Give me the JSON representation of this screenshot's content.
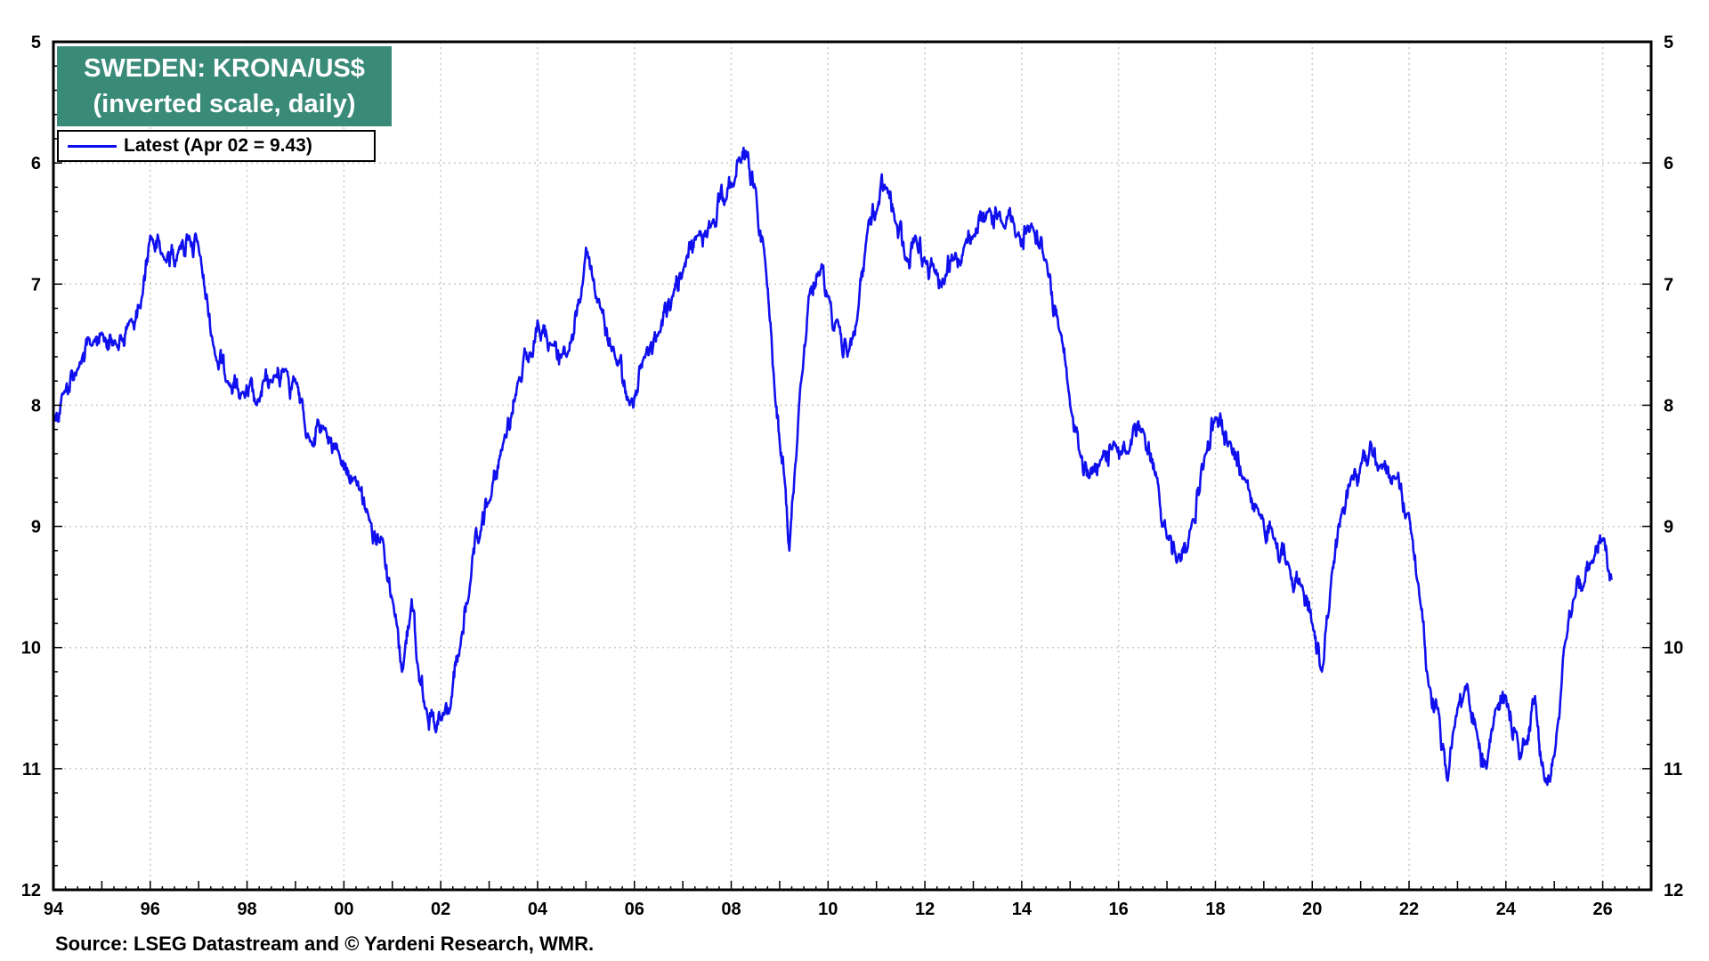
{
  "chart_data": {
    "type": "line",
    "title": "SWEDEN: KRONA/US$",
    "subtitle": "(inverted scale, daily)",
    "y_inverted": true,
    "ylim": [
      5,
      12
    ],
    "y_ticks": [
      "5",
      "6",
      "7",
      "8",
      "9",
      "10",
      "11",
      "12"
    ],
    "xlim": [
      1994.0,
      2027.0
    ],
    "x_tick_labels": [
      "94",
      "96",
      "98",
      "00",
      "02",
      "04",
      "06",
      "08",
      "10",
      "12",
      "14",
      "16",
      "18",
      "20",
      "22",
      "24",
      "26"
    ],
    "x_tick_values": [
      1994,
      1996,
      1998,
      2000,
      2002,
      2004,
      2006,
      2008,
      2010,
      2012,
      2014,
      2016,
      2018,
      2020,
      2022,
      2024,
      2026
    ],
    "grid": true,
    "legend_position": "top-left",
    "color": "#1010ee",
    "series": [
      {
        "name": "Latest (Apr 02 = 9.43)",
        "x": [
          1994.0,
          1994.2,
          1994.5,
          1994.8,
          1995.0,
          1995.3,
          1995.6,
          1995.8,
          1996.0,
          1996.3,
          1996.6,
          1996.8,
          1997.0,
          1997.3,
          1997.6,
          1997.9,
          1998.2,
          1998.5,
          1998.8,
          1999.0,
          1999.3,
          1999.6,
          1999.9,
          2000.2,
          2000.5,
          2000.8,
          2001.0,
          2001.2,
          2001.4,
          2001.5,
          2001.7,
          2001.9,
          2002.0,
          2002.2,
          2002.4,
          2002.6,
          2002.8,
          2003.0,
          2003.3,
          2003.6,
          2003.9,
          2004.0,
          2004.3,
          2004.6,
          2004.9,
          2005.0,
          2005.3,
          2005.6,
          2005.9,
          2006.2,
          2006.5,
          2006.8,
          2007.0,
          2007.3,
          2007.6,
          2007.9,
          2008.0,
          2008.2,
          2008.3,
          2008.5,
          2008.7,
          2008.9,
          2009.0,
          2009.1,
          2009.2,
          2009.4,
          2009.6,
          2009.8,
          2010.0,
          2010.2,
          2010.4,
          2010.6,
          2010.8,
          2011.0,
          2011.2,
          2011.4,
          2011.6,
          2011.8,
          2012.0,
          2012.2,
          2012.4,
          2012.6,
          2012.8,
          2013.0,
          2013.3,
          2013.6,
          2013.9,
          2014.2,
          2014.5,
          2014.8,
          2015.0,
          2015.2,
          2015.4,
          2015.6,
          2015.9,
          2016.2,
          2016.5,
          2016.8,
          2017.0,
          2017.2,
          2017.5,
          2017.8,
          2018.0,
          2018.3,
          2018.6,
          2018.9,
          2019.2,
          2019.5,
          2019.8,
          2020.0,
          2020.2,
          2020.4,
          2020.6,
          2020.8,
          2021.0,
          2021.2,
          2021.4,
          2021.7,
          2022.0,
          2022.2,
          2022.4,
          2022.6,
          2022.8,
          2023.0,
          2023.2,
          2023.4,
          2023.6,
          2023.8,
          2024.0,
          2024.2,
          2024.4,
          2024.6,
          2024.8,
          2025.0,
          2025.2,
          2025.4,
          2025.6,
          2025.8,
          2026.0,
          2026.2
        ],
        "y": [
          8.1,
          7.9,
          7.7,
          7.5,
          7.4,
          7.5,
          7.3,
          7.2,
          6.6,
          6.8,
          6.7,
          6.6,
          6.7,
          7.5,
          7.8,
          7.9,
          8.0,
          7.8,
          7.7,
          7.8,
          8.3,
          8.2,
          8.4,
          8.6,
          8.9,
          9.1,
          9.6,
          10.2,
          9.6,
          10.1,
          10.5,
          10.7,
          10.6,
          10.5,
          10.0,
          9.5,
          9.1,
          8.8,
          8.3,
          7.8,
          7.6,
          7.3,
          7.5,
          7.6,
          7.1,
          6.7,
          7.2,
          7.6,
          8.0,
          7.6,
          7.4,
          7.1,
          6.9,
          6.6,
          6.5,
          6.3,
          6.2,
          6.0,
          5.9,
          6.2,
          6.8,
          7.9,
          8.3,
          8.6,
          9.2,
          8.0,
          7.1,
          6.9,
          7.1,
          7.3,
          7.6,
          7.3,
          6.6,
          6.4,
          6.2,
          6.5,
          6.8,
          6.6,
          6.8,
          6.9,
          7.0,
          6.8,
          6.7,
          6.6,
          6.4,
          6.5,
          6.6,
          6.5,
          6.8,
          7.4,
          8.0,
          8.4,
          8.6,
          8.5,
          8.3,
          8.4,
          8.2,
          8.6,
          9.1,
          9.3,
          9.0,
          8.4,
          8.1,
          8.3,
          8.6,
          8.9,
          9.1,
          9.3,
          9.5,
          9.8,
          10.2,
          9.4,
          8.9,
          8.6,
          8.5,
          8.3,
          8.5,
          8.6,
          8.9,
          9.5,
          10.3,
          10.5,
          11.1,
          10.5,
          10.3,
          10.7,
          11.0,
          10.5,
          10.4,
          10.7,
          10.8,
          10.4,
          11.1,
          10.9,
          10.0,
          9.6,
          9.5,
          9.3,
          9.1,
          9.43
        ]
      }
    ]
  },
  "header": {
    "title": "SWEDEN: KRONA/US$",
    "subtitle": "(inverted scale, daily)"
  },
  "legend": {
    "label": "Latest (Apr 02 = 9.43)"
  },
  "footer": {
    "source": "Source: LSEG Datastream and © Yardeni Research, WMR."
  }
}
